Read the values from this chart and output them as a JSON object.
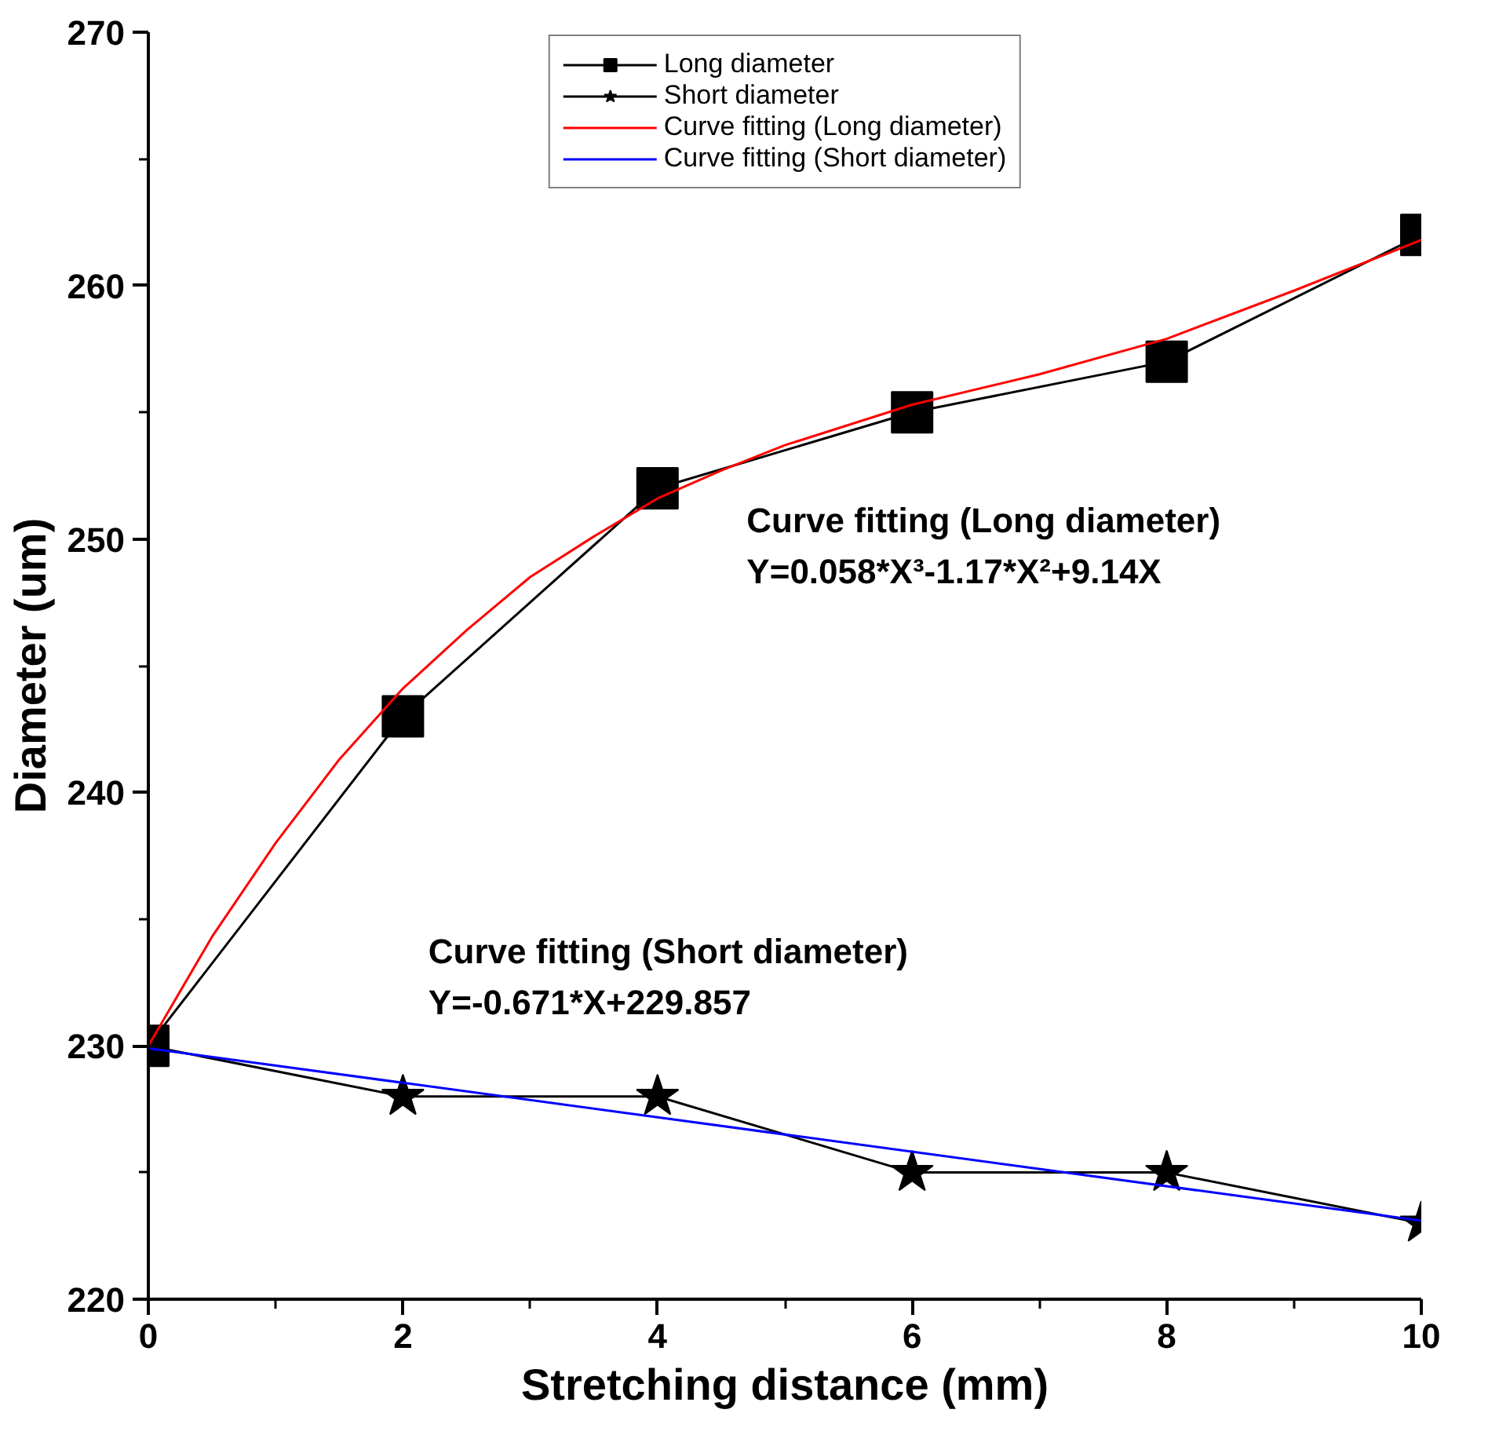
{
  "chart_data": {
    "type": "line",
    "xlabel": "Stretching distance (mm)",
    "ylabel": "Diameter (um)",
    "xlim": [
      0,
      10
    ],
    "xticks": [
      0,
      2,
      4,
      6,
      8,
      10
    ],
    "ylim": [
      220,
      270
    ],
    "yticks": [
      220,
      230,
      240,
      250,
      260,
      270
    ],
    "grid": false,
    "legend": "top",
    "series": [
      {
        "name": "Long diameter",
        "color": "#000000",
        "marker": "square",
        "x": [
          0,
          2,
          4,
          6,
          8,
          10
        ],
        "values": [
          230,
          243,
          252,
          255,
          257,
          262
        ]
      },
      {
        "name": "Short diameter",
        "color": "#000000",
        "marker": "star",
        "x": [
          0,
          2,
          4,
          6,
          8,
          10
        ],
        "values": [
          230,
          228,
          228,
          225,
          225,
          223
        ]
      },
      {
        "name": "Curve fitting (Long diameter)",
        "color": "#ff0000",
        "marker": "none",
        "x": [
          0,
          0.5,
          1,
          1.5,
          2,
          2.5,
          3,
          3.5,
          4,
          4.5,
          5,
          6,
          7,
          8,
          9,
          10
        ],
        "values": [
          230,
          234.3,
          238,
          241.3,
          244.1,
          246.4,
          248.5,
          250.1,
          251.6,
          252.7,
          253.7,
          255.3,
          256.5,
          257.9,
          259.8,
          261.8
        ]
      },
      {
        "name": "Curve fitting (Short diameter)",
        "color": "#0000ff",
        "marker": "none",
        "x": [
          0,
          10
        ],
        "values": [
          229.9,
          223.1
        ]
      }
    ],
    "annotations": [
      "Curve fitting (Long diameter)\nY=0.058*X³-1.17*X²+9.14X",
      "Curve fitting (Short diameter)\nY=-0.671*X+229.857"
    ]
  }
}
